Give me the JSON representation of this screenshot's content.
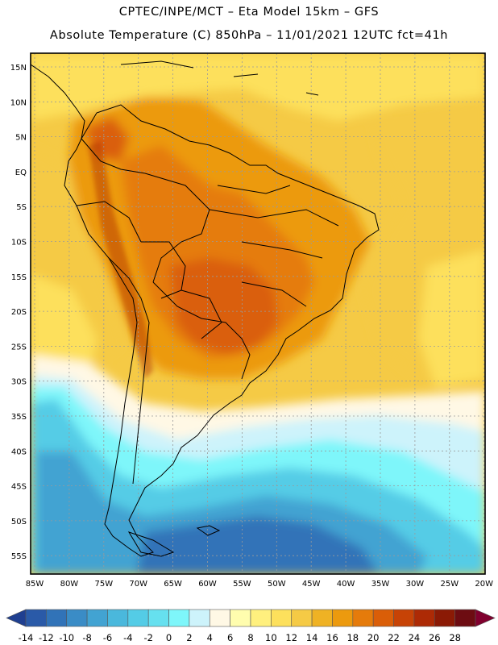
{
  "header": {
    "line1": "CPTEC/INPE/MCT –  Eta Model 15km – GFS",
    "line2": "Absolute Temperature (C) 850hPa – 11/01/2021 12UTC fct=41h"
  },
  "axes": {
    "lat_labels": [
      "15N",
      "10N",
      "5N",
      "EQ",
      "5S",
      "10S",
      "15S",
      "20S",
      "25S",
      "30S",
      "35S",
      "40S",
      "45S",
      "50S",
      "55S"
    ],
    "lon_labels": [
      "85W",
      "80W",
      "75W",
      "70W",
      "65W",
      "60W",
      "55W",
      "50W",
      "45W",
      "40W",
      "35W",
      "30W",
      "25W",
      "20W"
    ]
  },
  "colorbar": {
    "ticks": [
      "-14",
      "-12",
      "-10",
      "-8",
      "-6",
      "-4",
      "-2",
      "0",
      "2",
      "4",
      "6",
      "8",
      "10",
      "12",
      "14",
      "16",
      "18",
      "20",
      "22",
      "24",
      "26",
      "28"
    ],
    "colors": [
      "#1f3f90",
      "#2a5aa8",
      "#3173b8",
      "#3a8cc6",
      "#42a3d2",
      "#4ab8dc",
      "#54cce6",
      "#66e0ef",
      "#7ef6fa",
      "#cdf3fb",
      "#fff8e5",
      "#fffdae",
      "#fff07e",
      "#fde05c",
      "#f5ca45",
      "#efb224",
      "#ec9a0e",
      "#e57b0b",
      "#da5e08",
      "#c74306",
      "#ad2a05",
      "#8b1a05",
      "#6d0c12",
      "#80002e"
    ]
  },
  "map": {
    "palette": {
      "deep_blue": "#3173b8",
      "blue": "#42a3d2",
      "light_blue": "#54cce6",
      "cyan": "#7ef6fa",
      "pale_cyan": "#cdf3fb",
      "cream": "#fff8e5",
      "pale_yellow": "#fffdae",
      "yellow": "#fde05c",
      "gold": "#f5ca45",
      "orange_yellow": "#efb224",
      "orange": "#ec9a0e",
      "dark_orange": "#e57b0b",
      "red_orange": "#da5e08",
      "brown_red": "#ad2a05",
      "border": "#000000",
      "grid": "#9a9a9a"
    }
  }
}
